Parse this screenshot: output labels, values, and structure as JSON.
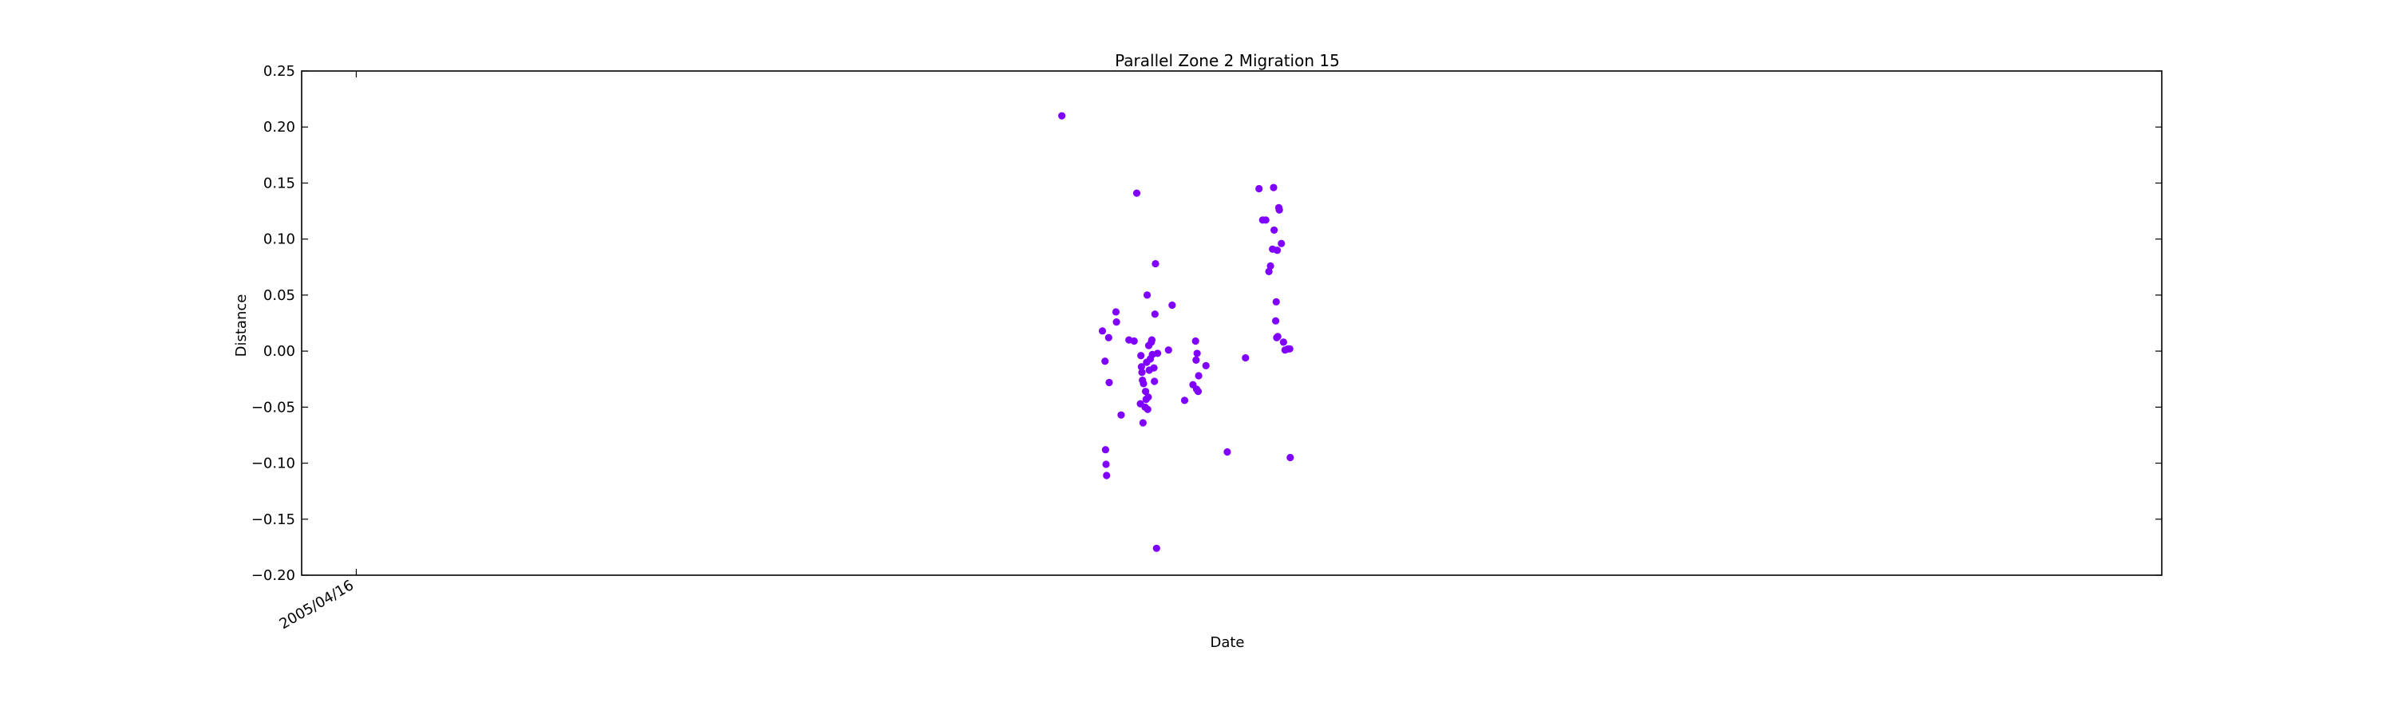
{
  "chart_data": {
    "type": "scatter",
    "title": "Parallel Zone 2 Migration 15",
    "xlabel": "Date",
    "ylabel": "Distance",
    "ylim": [
      -0.2,
      0.25
    ],
    "yticks": [
      -0.2,
      -0.15,
      -0.1,
      -0.05,
      0.0,
      0.05,
      0.1,
      0.15,
      0.2,
      0.25
    ],
    "ytick_labels": [
      "−0.20",
      "−0.15",
      "−0.10",
      "−0.05",
      "0.00",
      "0.05",
      "0.10",
      "0.15",
      "0.20",
      "0.25"
    ],
    "xlim": [
      "2005-01-01",
      "2014-10-16"
    ],
    "xticks": [
      {
        "value": "2005-04-16",
        "label": "2005/04/16"
      }
    ],
    "grid": false,
    "legend": "none",
    "marker_color": "#7f00ff",
    "points": [
      {
        "x": "2009-01-01",
        "y": 0.21
      },
      {
        "x": "2009-03-20",
        "y": 0.018
      },
      {
        "x": "2009-03-25",
        "y": -0.009
      },
      {
        "x": "2009-03-26",
        "y": -0.088
      },
      {
        "x": "2009-03-27",
        "y": -0.101
      },
      {
        "x": "2009-03-28",
        "y": -0.111
      },
      {
        "x": "2009-04-01",
        "y": 0.012
      },
      {
        "x": "2009-04-02",
        "y": -0.028
      },
      {
        "x": "2009-04-15",
        "y": 0.035
      },
      {
        "x": "2009-04-16",
        "y": 0.026
      },
      {
        "x": "2009-04-25",
        "y": -0.057
      },
      {
        "x": "2009-05-10",
        "y": 0.01
      },
      {
        "x": "2009-05-20",
        "y": 0.009
      },
      {
        "x": "2009-05-25",
        "y": 0.141
      },
      {
        "x": "2009-06-01",
        "y": -0.047
      },
      {
        "x": "2009-06-02",
        "y": -0.004
      },
      {
        "x": "2009-06-03",
        "y": -0.014
      },
      {
        "x": "2009-06-04",
        "y": -0.019
      },
      {
        "x": "2009-06-05",
        "y": -0.026
      },
      {
        "x": "2009-06-06",
        "y": -0.064
      },
      {
        "x": "2009-06-07",
        "y": -0.029
      },
      {
        "x": "2009-06-10",
        "y": -0.05
      },
      {
        "x": "2009-06-11",
        "y": -0.036
      },
      {
        "x": "2009-06-12",
        "y": -0.043
      },
      {
        "x": "2009-06-13",
        "y": -0.01
      },
      {
        "x": "2009-06-14",
        "y": 0.05
      },
      {
        "x": "2009-06-15",
        "y": -0.052
      },
      {
        "x": "2009-06-16",
        "y": -0.041
      },
      {
        "x": "2009-06-17",
        "y": 0.005
      },
      {
        "x": "2009-06-18",
        "y": -0.017
      },
      {
        "x": "2009-06-20",
        "y": -0.007
      },
      {
        "x": "2009-06-22",
        "y": 0.008
      },
      {
        "x": "2009-06-23",
        "y": 0.01
      },
      {
        "x": "2009-06-24",
        "y": -0.003
      },
      {
        "x": "2009-06-27",
        "y": -0.015
      },
      {
        "x": "2009-06-28",
        "y": -0.027
      },
      {
        "x": "2009-06-29",
        "y": 0.033
      },
      {
        "x": "2009-06-30",
        "y": 0.078
      },
      {
        "x": "2009-07-02",
        "y": -0.176
      },
      {
        "x": "2009-07-04",
        "y": -0.002
      },
      {
        "x": "2009-07-25",
        "y": 0.001
      },
      {
        "x": "2009-08-01",
        "y": 0.041
      },
      {
        "x": "2009-08-25",
        "y": -0.044
      },
      {
        "x": "2009-09-10",
        "y": -0.03
      },
      {
        "x": "2009-09-15",
        "y": 0.009
      },
      {
        "x": "2009-09-16",
        "y": -0.008
      },
      {
        "x": "2009-09-17",
        "y": -0.034
      },
      {
        "x": "2009-09-18",
        "y": -0.002
      },
      {
        "x": "2009-09-20",
        "y": -0.036
      },
      {
        "x": "2009-09-21",
        "y": -0.022
      },
      {
        "x": "2009-10-05",
        "y": -0.013
      },
      {
        "x": "2009-11-15",
        "y": -0.09
      },
      {
        "x": "2009-12-20",
        "y": -0.006
      },
      {
        "x": "2010-01-15",
        "y": 0.145
      },
      {
        "x": "2010-01-22",
        "y": 0.117
      },
      {
        "x": "2010-01-28",
        "y": 0.117
      },
      {
        "x": "2010-02-03",
        "y": 0.071
      },
      {
        "x": "2010-02-06",
        "y": 0.076
      },
      {
        "x": "2010-02-10",
        "y": 0.091
      },
      {
        "x": "2010-02-12",
        "y": 0.146
      },
      {
        "x": "2010-02-13",
        "y": 0.108
      },
      {
        "x": "2010-02-16",
        "y": 0.027
      },
      {
        "x": "2010-02-17",
        "y": 0.044
      },
      {
        "x": "2010-02-18",
        "y": 0.012
      },
      {
        "x": "2010-02-19",
        "y": 0.09
      },
      {
        "x": "2010-02-20",
        "y": 0.013
      },
      {
        "x": "2010-02-22",
        "y": 0.128
      },
      {
        "x": "2010-02-23",
        "y": 0.126
      },
      {
        "x": "2010-02-27",
        "y": 0.096
      },
      {
        "x": "2010-03-03",
        "y": 0.008
      },
      {
        "x": "2010-03-06",
        "y": 0.001
      },
      {
        "x": "2010-03-12",
        "y": 0.002
      },
      {
        "x": "2010-03-15",
        "y": 0.002
      },
      {
        "x": "2010-03-16",
        "y": -0.095
      }
    ]
  }
}
